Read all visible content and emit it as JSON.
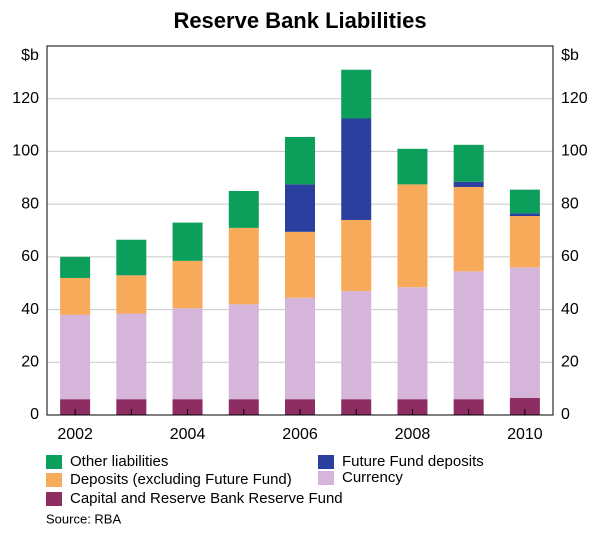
{
  "chart_data": {
    "type": "stacked_bar",
    "title": "Reserve Bank Liabilities",
    "y_label": "$b",
    "categories": [
      "2002",
      null,
      "2004",
      null,
      "2006",
      null,
      "2008",
      null,
      "2010"
    ],
    "series": [
      {
        "name": "Capital and Reserve Bank Reserve Fund",
        "color": "#8e2d62",
        "values": [
          6,
          6,
          6,
          6,
          6,
          6,
          6,
          6,
          6.5
        ]
      },
      {
        "name": "Currency",
        "color": "#d5b5d9",
        "values": [
          32,
          32.5,
          34.5,
          36,
          38.5,
          41,
          42.5,
          48.5,
          49.5
        ]
      },
      {
        "name": "Deposits (excluding Future Fund)",
        "color": "#f6aa5a",
        "values": [
          14,
          14.5,
          18,
          29,
          25,
          27,
          39,
          32,
          19.5
        ]
      },
      {
        "name": "Future Fund deposits",
        "color": "#2b3f9e",
        "values": [
          0,
          0,
          0,
          0,
          18,
          38.5,
          0,
          2,
          1
        ]
      },
      {
        "name": "Other liabilities",
        "color": "#0c9e5b",
        "values": [
          8,
          13.5,
          14.5,
          14,
          18,
          18.5,
          13.5,
          14,
          9
        ]
      }
    ],
    "ylim": [
      0,
      140
    ],
    "yticks": [
      0,
      20,
      40,
      60,
      80,
      100,
      120
    ],
    "grid": true,
    "source": "Source: RBA"
  }
}
